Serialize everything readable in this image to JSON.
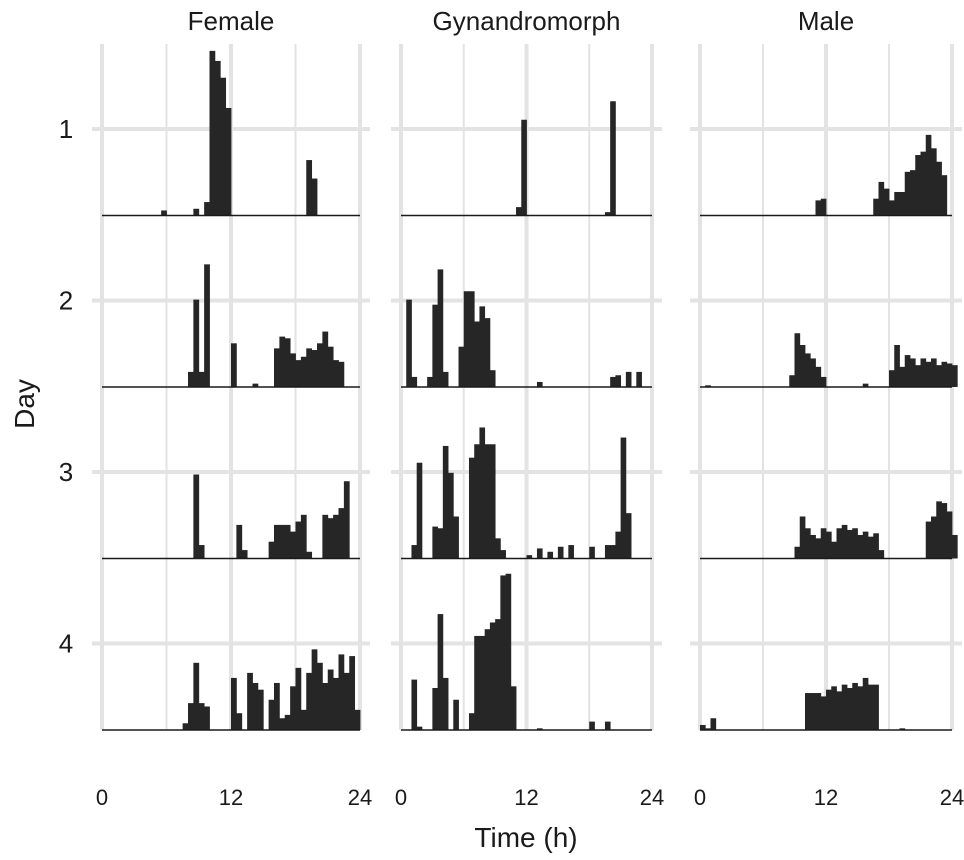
{
  "chart_data": {
    "type": "bar",
    "xlabel": "Time (h)",
    "ylabel": "Day",
    "x_ticks": [
      "0",
      "12",
      "24"
    ],
    "x_tick_values": [
      0,
      12,
      24
    ],
    "xlim": [
      0,
      24
    ],
    "bin_width_h": 0.5,
    "row_labels": [
      "1",
      "2",
      "3",
      "4"
    ],
    "panels": [
      {
        "name": "Female",
        "days": [
          {
            "day": "1",
            "bins": [
              [
                5.5,
                0.03
              ],
              [
                8.5,
                0.04
              ],
              [
                9.5,
                0.08
              ],
              [
                10,
                0.98
              ],
              [
                10.5,
                0.92
              ],
              [
                11,
                0.82
              ],
              [
                11.5,
                0.64
              ],
              [
                19,
                0.33
              ],
              [
                19.5,
                0.22
              ]
            ]
          },
          {
            "day": "2",
            "bins": [
              [
                8,
                0.09
              ],
              [
                8.5,
                0.52
              ],
              [
                9,
                0.09
              ],
              [
                9.5,
                0.73
              ],
              [
                12,
                0.26
              ],
              [
                14,
                0.02
              ],
              [
                16,
                0.23
              ],
              [
                16.5,
                0.3
              ],
              [
                17,
                0.29
              ],
              [
                17.5,
                0.2
              ],
              [
                18,
                0.16
              ],
              [
                18.5,
                0.18
              ],
              [
                19,
                0.23
              ],
              [
                19.5,
                0.22
              ],
              [
                20,
                0.26
              ],
              [
                20.5,
                0.33
              ],
              [
                21,
                0.24
              ],
              [
                21.5,
                0.16
              ],
              [
                22,
                0.15
              ]
            ]
          },
          {
            "day": "3",
            "bins": [
              [
                8.5,
                0.5
              ],
              [
                9,
                0.08
              ],
              [
                12.5,
                0.2
              ],
              [
                13,
                0.05
              ],
              [
                15.5,
                0.1
              ],
              [
                16,
                0.2
              ],
              [
                16.5,
                0.2
              ],
              [
                17,
                0.2
              ],
              [
                17.5,
                0.16
              ],
              [
                18,
                0.22
              ],
              [
                18.5,
                0.26
              ],
              [
                19,
                0.04
              ],
              [
                20.5,
                0.26
              ],
              [
                21,
                0.24
              ],
              [
                21.5,
                0.26
              ],
              [
                22,
                0.3
              ],
              [
                22.5,
                0.46
              ]
            ]
          },
          {
            "day": "4",
            "bins": [
              [
                7.5,
                0.04
              ],
              [
                8,
                0.16
              ],
              [
                8.5,
                0.4
              ],
              [
                9,
                0.16
              ],
              [
                9.5,
                0.14
              ],
              [
                12,
                0.31
              ],
              [
                12.5,
                0.1
              ],
              [
                13.5,
                0.34
              ],
              [
                14,
                0.28
              ],
              [
                14.5,
                0.24
              ],
              [
                15.5,
                0.18
              ],
              [
                16,
                0.28
              ],
              [
                16.5,
                0.07
              ],
              [
                17,
                0.09
              ],
              [
                17.5,
                0.26
              ],
              [
                18,
                0.37
              ],
              [
                18.5,
                0.12
              ],
              [
                19,
                0.34
              ],
              [
                19.5,
                0.48
              ],
              [
                20,
                0.4
              ],
              [
                20.5,
                0.28
              ],
              [
                21,
                0.36
              ],
              [
                21.5,
                0.31
              ],
              [
                22,
                0.45
              ],
              [
                22.5,
                0.34
              ],
              [
                23,
                0.44
              ],
              [
                23.5,
                0.12
              ]
            ]
          }
        ]
      },
      {
        "name": "Gynandromorph",
        "days": [
          {
            "day": "1",
            "bins": [
              [
                11,
                0.05
              ],
              [
                11.5,
                0.57
              ],
              [
                19.5,
                0.02
              ],
              [
                20,
                0.68
              ]
            ]
          },
          {
            "day": "2",
            "bins": [
              [
                0.5,
                0.52
              ],
              [
                1,
                0.06
              ],
              [
                2.5,
                0.06
              ],
              [
                3,
                0.49
              ],
              [
                3.5,
                0.7
              ],
              [
                4,
                0.09
              ],
              [
                5.5,
                0.24
              ],
              [
                6,
                0.57
              ],
              [
                6.5,
                0.57
              ],
              [
                7,
                0.39
              ],
              [
                7.5,
                0.48
              ],
              [
                8,
                0.41
              ],
              [
                8.5,
                0.1
              ],
              [
                13,
                0.03
              ],
              [
                20,
                0.06
              ],
              [
                20.5,
                0.07
              ],
              [
                21.5,
                0.09
              ],
              [
                22.5,
                0.09
              ]
            ]
          },
          {
            "day": "3",
            "bins": [
              [
                1,
                0.08
              ],
              [
                1.5,
                0.57
              ],
              [
                3,
                0.19
              ],
              [
                3.5,
                0.18
              ],
              [
                4,
                0.67
              ],
              [
                4.5,
                0.51
              ],
              [
                5,
                0.25
              ],
              [
                6.5,
                0.6
              ],
              [
                7,
                0.68
              ],
              [
                7.5,
                0.78
              ],
              [
                8,
                0.68
              ],
              [
                8.5,
                0.68
              ],
              [
                9,
                0.12
              ],
              [
                9.5,
                0.05
              ],
              [
                12,
                0.02
              ],
              [
                13,
                0.06
              ],
              [
                14,
                0.04
              ],
              [
                15,
                0.07
              ],
              [
                16,
                0.08
              ],
              [
                18,
                0.07
              ],
              [
                19.5,
                0.08
              ],
              [
                20,
                0.08
              ],
              [
                20.5,
                0.16
              ],
              [
                21,
                0.72
              ],
              [
                21.5,
                0.27
              ]
            ]
          },
          {
            "day": "4",
            "bins": [
              [
                1,
                0.3
              ],
              [
                1.5,
                0.02
              ],
              [
                3,
                0.25
              ],
              [
                3.5,
                0.69
              ],
              [
                4,
                0.31
              ],
              [
                5,
                0.18
              ],
              [
                6.5,
                0.1
              ],
              [
                7,
                0.56
              ],
              [
                7.5,
                0.56
              ],
              [
                8,
                0.6
              ],
              [
                8.5,
                0.64
              ],
              [
                9,
                0.66
              ],
              [
                9.5,
                0.92
              ],
              [
                10,
                0.93
              ],
              [
                10.5,
                0.26
              ],
              [
                13,
                0.01
              ],
              [
                18,
                0.05
              ],
              [
                19.5,
                0.05
              ]
            ]
          }
        ]
      },
      {
        "name": "Male",
        "days": [
          {
            "day": "1",
            "bins": [
              [
                11,
                0.09
              ],
              [
                11.5,
                0.1
              ],
              [
                16.5,
                0.1
              ],
              [
                17,
                0.2
              ],
              [
                17.5,
                0.16
              ],
              [
                18,
                0.09
              ],
              [
                18.5,
                0.14
              ],
              [
                19,
                0.14
              ],
              [
                19.5,
                0.26
              ],
              [
                20,
                0.27
              ],
              [
                20.5,
                0.36
              ],
              [
                21,
                0.38
              ],
              [
                21.5,
                0.48
              ],
              [
                22,
                0.4
              ],
              [
                22.5,
                0.32
              ],
              [
                23,
                0.24
              ]
            ]
          },
          {
            "day": "2",
            "bins": [
              [
                0.5,
                0.01
              ],
              [
                8.5,
                0.07
              ],
              [
                9,
                0.32
              ],
              [
                9.5,
                0.25
              ],
              [
                10,
                0.2
              ],
              [
                10.5,
                0.17
              ],
              [
                11,
                0.12
              ],
              [
                11.5,
                0.06
              ],
              [
                15.5,
                0.02
              ],
              [
                18,
                0.1
              ],
              [
                18.5,
                0.25
              ],
              [
                19,
                0.12
              ],
              [
                19.5,
                0.19
              ],
              [
                20,
                0.17
              ],
              [
                20.5,
                0.13
              ],
              [
                21,
                0.17
              ],
              [
                21.5,
                0.15
              ],
              [
                22,
                0.17
              ],
              [
                22.5,
                0.13
              ],
              [
                23,
                0.15
              ],
              [
                23.5,
                0.14
              ],
              [
                24,
                0.13
              ]
            ]
          },
          {
            "day": "3",
            "bins": [
              [
                9,
                0.07
              ],
              [
                9.5,
                0.25
              ],
              [
                10,
                0.18
              ],
              [
                10.5,
                0.14
              ],
              [
                11,
                0.12
              ],
              [
                11.5,
                0.18
              ],
              [
                12,
                0.16
              ],
              [
                12.5,
                0.1
              ],
              [
                13,
                0.18
              ],
              [
                13.5,
                0.2
              ],
              [
                14,
                0.17
              ],
              [
                14.5,
                0.18
              ],
              [
                15,
                0.14
              ],
              [
                15.5,
                0.16
              ],
              [
                16,
                0.13
              ],
              [
                16.5,
                0.15
              ],
              [
                17,
                0.05
              ],
              [
                21.5,
                0.22
              ],
              [
                22,
                0.25
              ],
              [
                22.5,
                0.34
              ],
              [
                23,
                0.33
              ],
              [
                23.5,
                0.28
              ],
              [
                24,
                0.14
              ]
            ]
          },
          {
            "day": "4",
            "bins": [
              [
                0,
                0.03
              ],
              [
                0.5,
                0.01
              ],
              [
                1,
                0.07
              ],
              [
                10,
                0.22
              ],
              [
                10.5,
                0.22
              ],
              [
                11,
                0.22
              ],
              [
                11.5,
                0.2
              ],
              [
                12,
                0.24
              ],
              [
                12.5,
                0.26
              ],
              [
                13,
                0.23
              ],
              [
                13.5,
                0.27
              ],
              [
                14,
                0.25
              ],
              [
                14.5,
                0.28
              ],
              [
                15,
                0.26
              ],
              [
                15.5,
                0.31
              ],
              [
                16,
                0.27
              ],
              [
                16.5,
                0.27
              ],
              [
                19,
                0.01
              ]
            ]
          }
        ]
      }
    ],
    "grid": true,
    "bar_color": "#262626",
    "grid_color": "#e3e3e3"
  }
}
